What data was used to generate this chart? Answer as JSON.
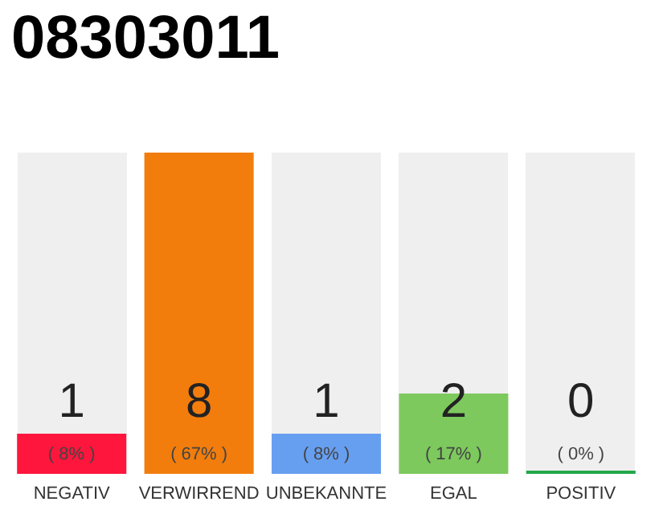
{
  "chart_data": {
    "type": "bar",
    "title": "08303011",
    "categories": [
      "NEGATIV",
      "VERWIRREND",
      "UNBEKANNTE",
      "EGAL",
      "POSITIV"
    ],
    "values": [
      1,
      8,
      1,
      2,
      0
    ],
    "colors": [
      "#ff163c",
      "#f27d0c",
      "#679ff0",
      "#7dc95e",
      "#22a84a"
    ],
    "data_labels": true,
    "annotations": [
      {
        "text": "( 8% )",
        "x": "NEGATIV",
        "y": 0
      },
      {
        "text": "( 67% )",
        "x": "VERWIRREND",
        "y": 0
      },
      {
        "text": "( 8% )",
        "x": "UNBEKANNTE",
        "y": 0
      },
      {
        "text": "( 17% )",
        "x": "EGAL",
        "y": 0
      },
      {
        "text": "( 0% )",
        "x": "POSITIV",
        "y": 0
      }
    ],
    "grid": false,
    "tick_labels": "x"
  }
}
